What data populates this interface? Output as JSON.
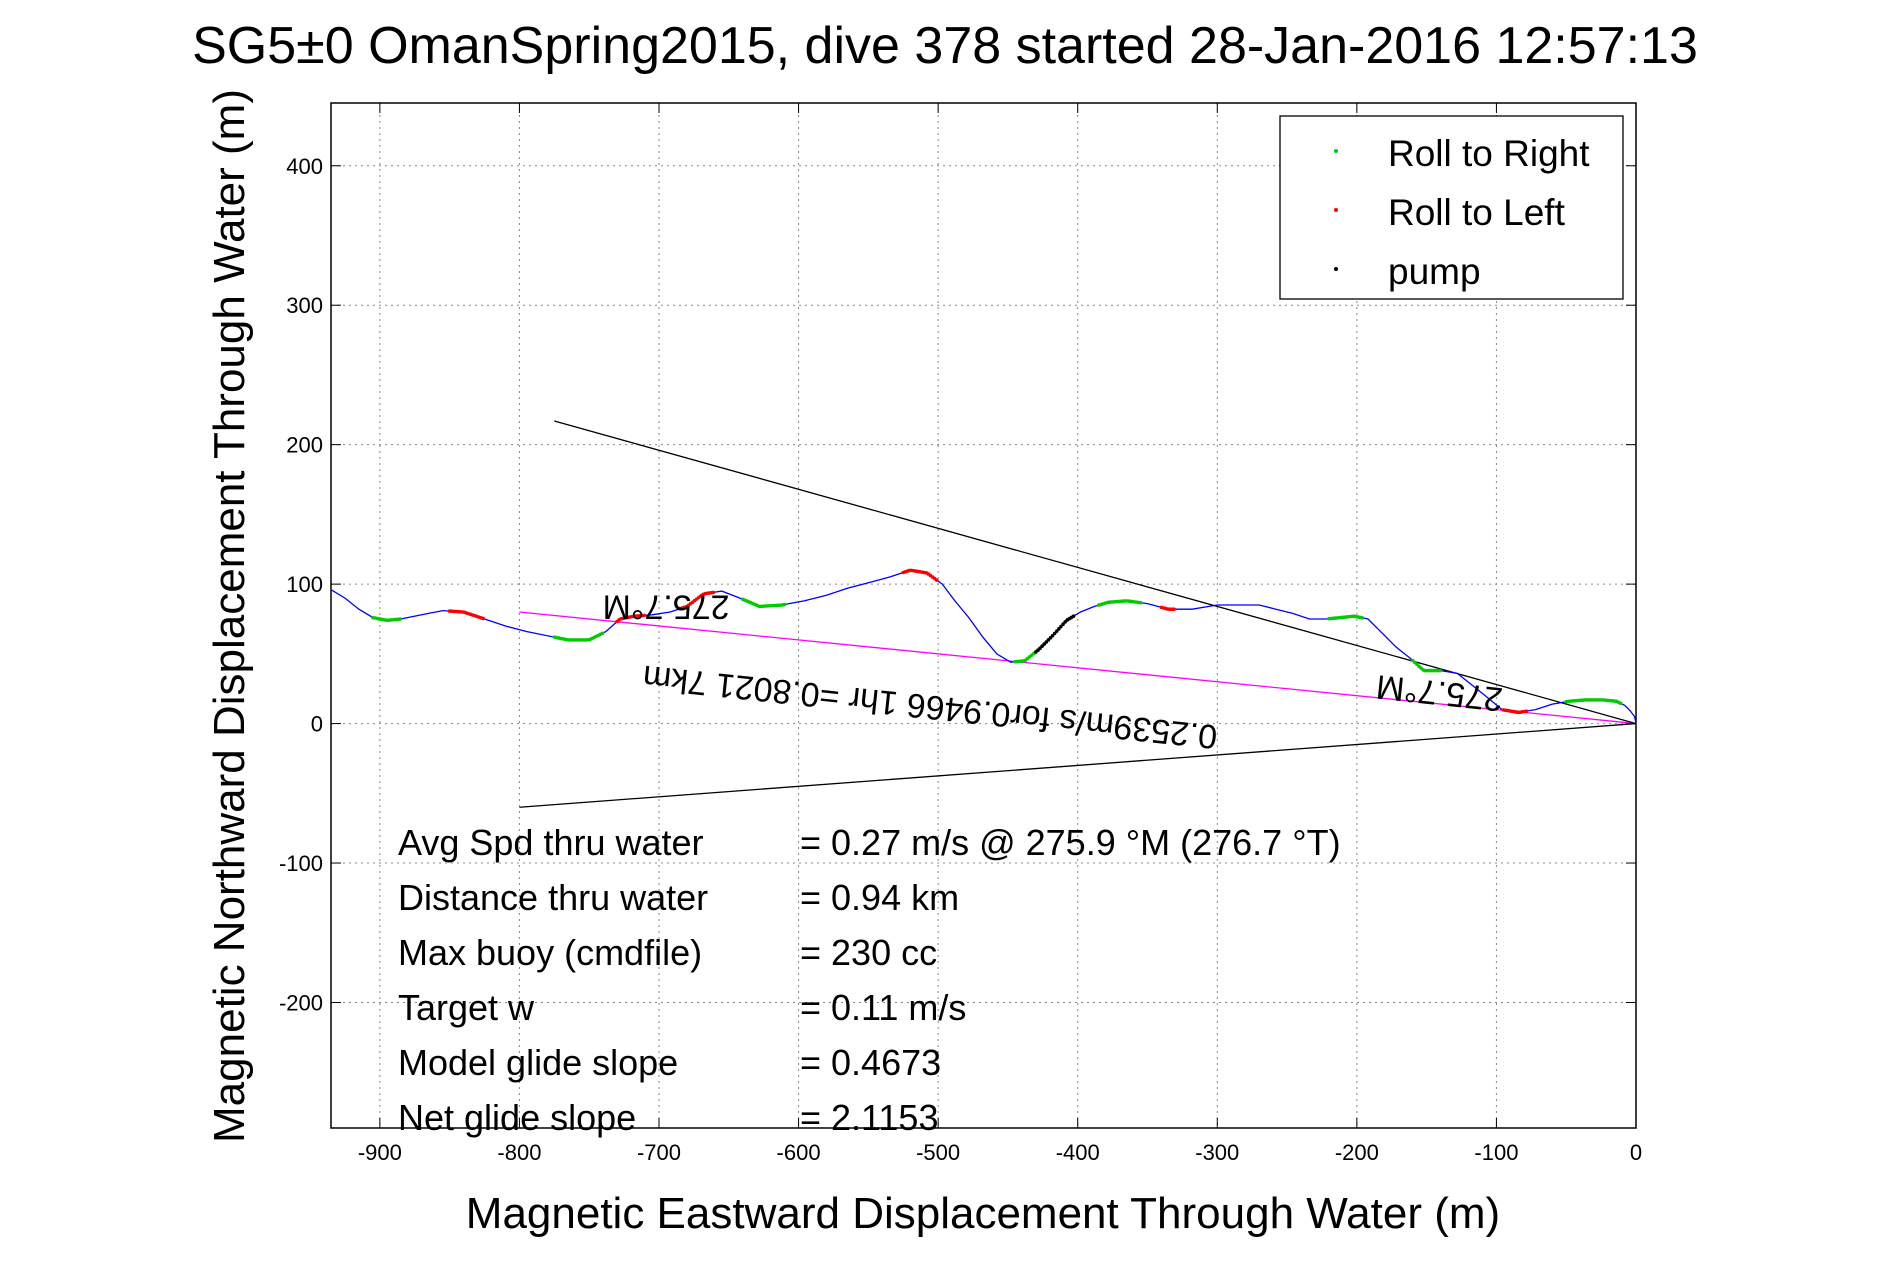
{
  "chart_data": {
    "type": "scatter",
    "title": "SG5±0 OmanSpring2015, dive 378 started 28-Jan-2016 12:57:13",
    "xlabel": "Magnetic Eastward Displacement Through Water (m)",
    "ylabel": "Magnetic Northward Displacement Through Water (m)",
    "xlim": [
      -935,
      0
    ],
    "ylim": [
      -290,
      445
    ],
    "xticks": [
      -900,
      -800,
      -700,
      -600,
      -500,
      -400,
      -300,
      -200,
      -100,
      0
    ],
    "yticks": [
      -200,
      -100,
      0,
      100,
      200,
      300,
      400
    ],
    "grid": true,
    "legend_position": "top-right",
    "legend": [
      {
        "label": "Roll to Right",
        "color": "#00cc00"
      },
      {
        "label": "Roll to Left",
        "color": "#ff0000"
      },
      {
        "label": "pump",
        "color": "#000000"
      }
    ],
    "series": [
      {
        "name": "track",
        "color": "#0000ff",
        "x": [
          -935,
          -925,
          -915,
          -905,
          -895,
          -885,
          -870,
          -855,
          -840,
          -825,
          -810,
          -795,
          -780,
          -765,
          -750,
          -738,
          -728,
          -718,
          -705,
          -692,
          -680,
          -668,
          -655,
          -642,
          -628,
          -612,
          -596,
          -580,
          -565,
          -550,
          -535,
          -520,
          -508,
          -497,
          -488,
          -478,
          -468,
          -458,
          -448,
          -438,
          -428,
          -418,
          -408,
          -398,
          -388,
          -378,
          -365,
          -350,
          -335,
          -318,
          -300,
          -285,
          -270,
          -258,
          -246,
          -234,
          -222,
          -212,
          -202,
          -192,
          -182,
          -172,
          -162,
          -152,
          -140,
          -128,
          -118,
          -108,
          -96,
          -84,
          -72,
          -60,
          -48,
          -36,
          -24,
          -14,
          -8,
          -4,
          -1,
          0
        ],
        "y": [
          96,
          90,
          82,
          76,
          74,
          75,
          78,
          81,
          80,
          75,
          70,
          66,
          63,
          60,
          60,
          66,
          75,
          77,
          78,
          80,
          84,
          93,
          95,
          90,
          84,
          85,
          88,
          92,
          97,
          101,
          105,
          110,
          108,
          100,
          88,
          76,
          62,
          50,
          44,
          45,
          53,
          63,
          74,
          80,
          84,
          87,
          88,
          86,
          82,
          82,
          85,
          85,
          85,
          82,
          79,
          75,
          75,
          76,
          77,
          75,
          65,
          55,
          47,
          38,
          38,
          36,
          28,
          20,
          10,
          8,
          10,
          14,
          16,
          17,
          17,
          16,
          13,
          9,
          5,
          0
        ]
      },
      {
        "name": "projected course",
        "color": "#ff00ff",
        "x": [
          -800,
          0
        ],
        "y": [
          80,
          0
        ]
      },
      {
        "name": "upper bound",
        "color": "#000000",
        "x": [
          -775,
          0
        ],
        "y": [
          217,
          0
        ]
      },
      {
        "name": "lower bound",
        "color": "#000000",
        "x": [
          -800,
          0
        ],
        "y": [
          -60,
          0
        ]
      }
    ],
    "markers": {
      "roll_right_ranges": [
        [
          -905,
          -885
        ],
        [
          -775,
          -740
        ],
        [
          -640,
          -610
        ],
        [
          -445,
          -420
        ],
        [
          -385,
          -355
        ],
        [
          -220,
          -195
        ],
        [
          -160,
          -140
        ],
        [
          -50,
          -10
        ]
      ],
      "roll_left_ranges": [
        [
          -850,
          -825
        ],
        [
          -730,
          -710
        ],
        [
          -685,
          -660
        ],
        [
          -525,
          -500
        ],
        [
          -340,
          -330
        ],
        [
          -95,
          -78
        ]
      ],
      "pump_ranges": [
        [
          -430,
          -402
        ]
      ]
    },
    "annotations": [
      {
        "text": "275.7°M",
        "x": -695,
        "y": 92,
        "rotation": 180
      },
      {
        "text": "275.7°M",
        "x": -140,
        "y": 30,
        "rotation": 186
      },
      {
        "text": "0.2539m/s for0.9466 1hr =0.8021 7km",
        "x": -505,
        "y": 20,
        "rotation": 186
      }
    ],
    "stats": [
      {
        "label": "Avg Spd thru water",
        "value": "=  0.27 m/s @ 275.9 °M (276.7 °T)"
      },
      {
        "label": "Distance thru water",
        "value": "=  0.94 km"
      },
      {
        "label": "Max buoy (cmdfile)",
        "value": "= 230 cc"
      },
      {
        "label": "Target w",
        "value": "= 0.11 m/s"
      },
      {
        "label": "Model glide slope",
        "value": "= 0.4673"
      },
      {
        "label": "Net glide slope",
        "value": "= 2.1153"
      }
    ]
  }
}
